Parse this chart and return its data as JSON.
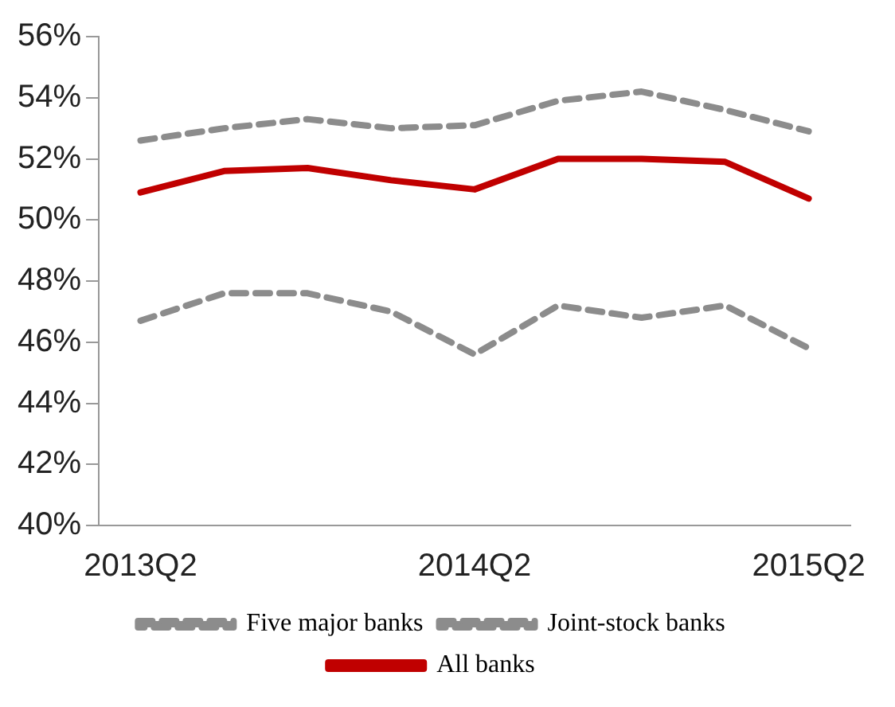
{
  "chart_data": {
    "type": "line",
    "categories": [
      "2013Q2",
      null,
      null,
      null,
      "2014Q2",
      null,
      null,
      null,
      "2015Q2"
    ],
    "series": [
      {
        "name": "Five major banks",
        "color": "#8c8c8c",
        "line_style": "dashed",
        "values": [
          52.6,
          53.0,
          53.3,
          53.0,
          53.1,
          53.9,
          54.2,
          53.6,
          52.9
        ]
      },
      {
        "name": "Joint-stock banks",
        "color": "#8c8c8c",
        "line_style": "dashed",
        "values": [
          46.7,
          47.6,
          47.6,
          47.0,
          45.6,
          47.2,
          46.8,
          47.2,
          45.8
        ]
      },
      {
        "name": "All banks",
        "color": "#c00000",
        "line_style": "solid",
        "values": [
          50.9,
          51.6,
          51.7,
          51.3,
          51.0,
          52.0,
          52.0,
          51.9,
          50.7
        ]
      }
    ],
    "ylim": [
      40,
      56
    ],
    "yticks": [
      {
        "value": 40,
        "label": "40%"
      },
      {
        "value": 42,
        "label": "42%"
      },
      {
        "value": 44,
        "label": "44%"
      },
      {
        "value": 46,
        "label": "46%"
      },
      {
        "value": 48,
        "label": "48%"
      },
      {
        "value": 50,
        "label": "50%"
      },
      {
        "value": 52,
        "label": "52%"
      },
      {
        "value": 54,
        "label": "54%"
      },
      {
        "value": 56,
        "label": "56%"
      }
    ],
    "grid": false,
    "legend": "bottom",
    "marker": "none"
  }
}
